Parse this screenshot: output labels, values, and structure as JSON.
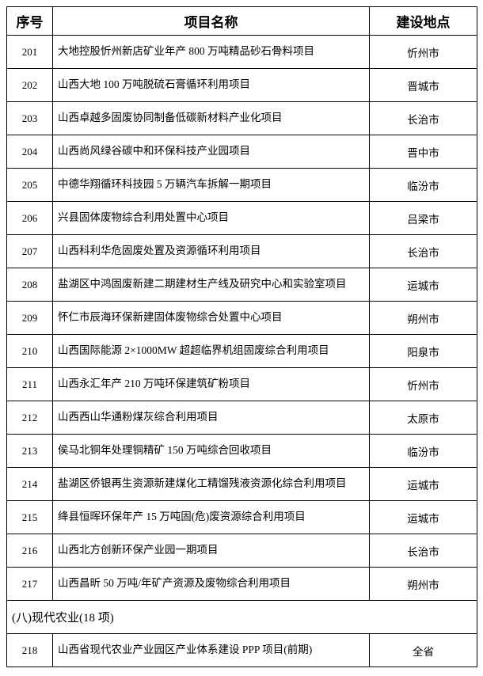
{
  "table": {
    "headers": {
      "index": "序号",
      "name": "项目名称",
      "location": "建设地点"
    },
    "section_label": "(八)现代农业(18 项)",
    "rows_a": [
      {
        "idx": "201",
        "name": "大地控股忻州新店矿业年产 800 万吨精品砂石骨料项目",
        "loc": "忻州市"
      },
      {
        "idx": "202",
        "name": "山西大地 100 万吨脱硫石膏循环利用项目",
        "loc": "晋城市"
      },
      {
        "idx": "203",
        "name": "山西卓越多固废协同制备低碳新材料产业化项目",
        "loc": "长治市"
      },
      {
        "idx": "204",
        "name": "山西尚风绿谷碳中和环保科技产业园项目",
        "loc": "晋中市"
      },
      {
        "idx": "205",
        "name": "中德华翔循环科技园 5 万辆汽车拆解一期项目",
        "loc": "临汾市"
      },
      {
        "idx": "206",
        "name": "兴县固体废物综合利用处置中心项目",
        "loc": "吕梁市"
      },
      {
        "idx": "207",
        "name": "山西科利华危固废处置及资源循环利用项目",
        "loc": "长治市"
      },
      {
        "idx": "208",
        "name": "盐湖区中鸿固废新建二期建材生产线及研究中心和实验室项目",
        "loc": "运城市"
      },
      {
        "idx": "209",
        "name": "怀仁市辰海环保新建固体废物综合处置中心项目",
        "loc": "朔州市"
      },
      {
        "idx": "210",
        "name": "山西国际能源 2×1000MW 超超临界机组固废综合利用项目",
        "loc": "阳泉市"
      },
      {
        "idx": "211",
        "name": "山西永汇年产 210 万吨环保建筑矿粉项目",
        "loc": "忻州市"
      },
      {
        "idx": "212",
        "name": "山西西山华通粉煤灰综合利用项目",
        "loc": "太原市"
      },
      {
        "idx": "213",
        "name": "侯马北铜年处理铜精矿 150 万吨综合回收项目",
        "loc": "临汾市"
      },
      {
        "idx": "214",
        "name": "盐湖区侨银再生资源新建煤化工精馏残液资源化综合利用项目",
        "loc": "运城市"
      },
      {
        "idx": "215",
        "name": "绛县恒晖环保年产 15 万吨固(危)废资源综合利用项目",
        "loc": "运城市"
      },
      {
        "idx": "216",
        "name": "山西北方创新环保产业园一期项目",
        "loc": "长治市"
      },
      {
        "idx": "217",
        "name": "山西昌昕 50 万吨/年矿产资源及废物综合利用项目",
        "loc": "朔州市"
      }
    ],
    "rows_b": [
      {
        "idx": "218",
        "name": "山西省现代农业产业园区产业体系建设 PPP 项目(前期)",
        "loc": "全省"
      }
    ]
  }
}
